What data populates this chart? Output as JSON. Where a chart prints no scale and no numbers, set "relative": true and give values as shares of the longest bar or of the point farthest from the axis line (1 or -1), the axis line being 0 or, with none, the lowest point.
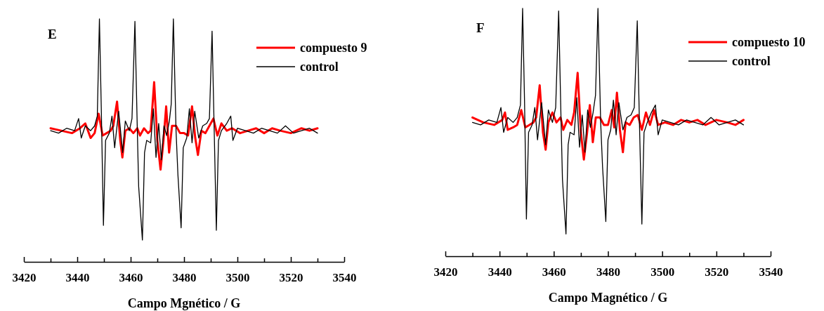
{
  "chart_data": [
    {
      "type": "line",
      "title": "E",
      "xlabel": "Campo Mgnético / G",
      "relative": true,
      "legend": "top right",
      "tick_labels": "x",
      "xlim": [
        3420,
        3540
      ],
      "xticks": [
        3420,
        {
          "value": 3430,
          "label": null
        },
        3440,
        {
          "value": 3450,
          "label": null
        },
        3460,
        {
          "value": 3470,
          "label": null
        },
        3480,
        {
          "value": 3490,
          "label": null
        },
        3500,
        {
          "value": 3510,
          "label": null
        },
        3520,
        {
          "value": 3530,
          "label": null
        },
        3540
      ],
      "series": [
        {
          "name": "compuesto 9",
          "color": "#ff0000",
          "x": [
            3430,
            3434,
            3438,
            3441,
            3443,
            3445,
            3446.5,
            3448,
            3449.5,
            3451,
            3452.5,
            3453.5,
            3454.9,
            3456.1,
            3456.9,
            3458,
            3459.5,
            3461,
            3462.5,
            3463.5,
            3465,
            3466.5,
            3467.5,
            3468.8,
            3470,
            3471.2,
            3472.3,
            3473.3,
            3474.4,
            3475.5,
            3477,
            3478.5,
            3480,
            3481.5,
            3483,
            3484.2,
            3485.2,
            3486.5,
            3488,
            3489.5,
            3491,
            3492.5,
            3494,
            3496,
            3498,
            3501,
            3504,
            3507,
            3510,
            3513,
            3516,
            3520,
            3524,
            3527,
            3530
          ],
          "values": [
            0.55,
            0.54,
            0.53,
            0.55,
            0.57,
            0.51,
            0.53,
            0.61,
            0.52,
            0.53,
            0.54,
            0.56,
            0.66,
            0.5,
            0.43,
            0.54,
            0.55,
            0.53,
            0.55,
            0.52,
            0.55,
            0.53,
            0.54,
            0.74,
            0.5,
            0.38,
            0.5,
            0.64,
            0.45,
            0.56,
            0.56,
            0.53,
            0.53,
            0.52,
            0.64,
            0.51,
            0.44,
            0.54,
            0.53,
            0.56,
            0.59,
            0.52,
            0.57,
            0.54,
            0.55,
            0.53,
            0.54,
            0.55,
            0.53,
            0.55,
            0.54,
            0.53,
            0.55,
            0.54,
            0.55
          ]
        },
        {
          "name": "control",
          "color": "#000000",
          "x": [
            3430,
            3433,
            3436,
            3439,
            3440.5,
            3441.5,
            3443,
            3445,
            3446.5,
            3447.5,
            3448.3,
            3449,
            3449.8,
            3450.6,
            3452,
            3453,
            3454,
            3455.5,
            3457,
            3458,
            3459.5,
            3460.5,
            3461.6,
            3462.5,
            3463,
            3464.4,
            3465.2,
            3466,
            3467.5,
            3468.5,
            3469.5,
            3470.5,
            3471.5,
            3472.5,
            3473.5,
            3474.5,
            3475.2,
            3476,
            3477,
            3477.7,
            3478.9,
            3479.7,
            3481,
            3482,
            3483,
            3484,
            3485.5,
            3487,
            3488.5,
            3489.5,
            3490.5,
            3491.3,
            3492.1,
            3492.9,
            3494,
            3496,
            3497.5,
            3498.3,
            3500,
            3503,
            3506,
            3509,
            3512,
            3515,
            3518,
            3521,
            3524,
            3527,
            3530
          ],
          "values": [
            0.54,
            0.53,
            0.55,
            0.54,
            0.59,
            0.51,
            0.56,
            0.54,
            0.56,
            0.6,
            1,
            0.63,
            0.15,
            0.5,
            0.53,
            0.6,
            0.47,
            0.62,
            0.45,
            0.58,
            0.54,
            0.59,
            0.99,
            0.54,
            0.31,
            0.09,
            0.45,
            0.5,
            0.49,
            0.63,
            0.43,
            0.57,
            0.42,
            0.56,
            0.52,
            0.58,
            0.65,
            1,
            0.54,
            0.36,
            0.14,
            0.47,
            0.51,
            0.63,
            0.49,
            0.62,
            0.51,
            0.56,
            0.57,
            0.59,
            0.95,
            0.54,
            0.13,
            0.5,
            0.54,
            0.57,
            0.6,
            0.5,
            0.55,
            0.54,
            0.53,
            0.55,
            0.54,
            0.53,
            0.56,
            0.53,
            0.54,
            0.55,
            0.53
          ]
        }
      ]
    },
    {
      "type": "line",
      "title": "F",
      "xlabel": "Campo Magnético / G",
      "relative": true,
      "legend": "top right",
      "tick_labels": "x",
      "xlim": [
        3420,
        3540
      ],
      "xticks": [
        3420,
        {
          "value": 3430,
          "label": null
        },
        3440,
        {
          "value": 3450,
          "label": null
        },
        3460,
        {
          "value": 3470,
          "label": null
        },
        3480,
        {
          "value": 3490,
          "label": null
        },
        3500,
        {
          "value": 3510,
          "label": null
        },
        3520,
        {
          "value": 3530,
          "label": null
        },
        3540
      ],
      "series": [
        {
          "name": "compuesto 10",
          "color": "#ff0000",
          "x": [
            3430,
            3434,
            3438,
            3441,
            3442,
            3443,
            3445,
            3446.5,
            3448,
            3449.5,
            3451,
            3452.5,
            3453.5,
            3454.8,
            3456,
            3457,
            3458,
            3459.5,
            3461,
            3462.5,
            3463.5,
            3465,
            3466.5,
            3467.5,
            3468.8,
            3470,
            3471.1,
            3472.3,
            3473.3,
            3474.4,
            3475.5,
            3477,
            3478.5,
            3480,
            3481.4,
            3482.3,
            3483.3,
            3484.4,
            3485.5,
            3486.5,
            3488,
            3489.5,
            3491,
            3492.5,
            3494,
            3495.5,
            3497,
            3498.5,
            3501,
            3504,
            3507,
            3510,
            3513,
            3516,
            3520,
            3524,
            3527,
            3530
          ],
          "values": [
            0.56,
            0.54,
            0.53,
            0.55,
            0.58,
            0.51,
            0.52,
            0.53,
            0.59,
            0.52,
            0.53,
            0.54,
            0.56,
            0.69,
            0.5,
            0.43,
            0.54,
            0.58,
            0.54,
            0.56,
            0.51,
            0.55,
            0.53,
            0.58,
            0.74,
            0.5,
            0.39,
            0.5,
            0.61,
            0.46,
            0.56,
            0.56,
            0.53,
            0.53,
            0.59,
            0.52,
            0.66,
            0.51,
            0.42,
            0.54,
            0.53,
            0.56,
            0.57,
            0.51,
            0.58,
            0.53,
            0.59,
            0.53,
            0.54,
            0.53,
            0.55,
            0.54,
            0.55,
            0.53,
            0.55,
            0.54,
            0.53,
            0.55
          ]
        },
        {
          "name": "control",
          "color": "#000000",
          "x": [
            3430,
            3433,
            3436,
            3439,
            3440.5,
            3441.5,
            3443,
            3445,
            3446.5,
            3447.7,
            3448.5,
            3449.2,
            3449.9,
            3450.7,
            3452,
            3453,
            3454,
            3455.5,
            3457,
            3458,
            3459.5,
            3460.7,
            3461.8,
            3462.7,
            3463.2,
            3464.5,
            3465.3,
            3466,
            3467.5,
            3468.5,
            3469.5,
            3470.5,
            3471.5,
            3472.5,
            3473.5,
            3474.5,
            3475.4,
            3476.3,
            3477.3,
            3478,
            3479.2,
            3480,
            3481,
            3482,
            3483,
            3484,
            3485.5,
            3487,
            3488.5,
            3489.7,
            3490.8,
            3491.6,
            3492.5,
            3493.3,
            3494.5,
            3496,
            3497.5,
            3498.5,
            3500,
            3503,
            3506,
            3509,
            3512,
            3515,
            3518,
            3521,
            3524,
            3527,
            3530
          ],
          "values": [
            0.54,
            0.53,
            0.55,
            0.54,
            0.6,
            0.5,
            0.56,
            0.54,
            0.56,
            0.61,
            1,
            0.63,
            0.15,
            0.5,
            0.53,
            0.6,
            0.47,
            0.62,
            0.45,
            0.59,
            0.54,
            0.6,
            0.99,
            0.54,
            0.31,
            0.09,
            0.45,
            0.5,
            0.49,
            0.64,
            0.44,
            0.57,
            0.42,
            0.59,
            0.52,
            0.58,
            0.65,
            1,
            0.54,
            0.36,
            0.14,
            0.47,
            0.51,
            0.63,
            0.49,
            0.62,
            0.51,
            0.56,
            0.57,
            0.6,
            0.95,
            0.54,
            0.13,
            0.5,
            0.54,
            0.58,
            0.61,
            0.49,
            0.55,
            0.54,
            0.53,
            0.55,
            0.54,
            0.53,
            0.56,
            0.53,
            0.54,
            0.55,
            0.53
          ]
        }
      ]
    }
  ]
}
